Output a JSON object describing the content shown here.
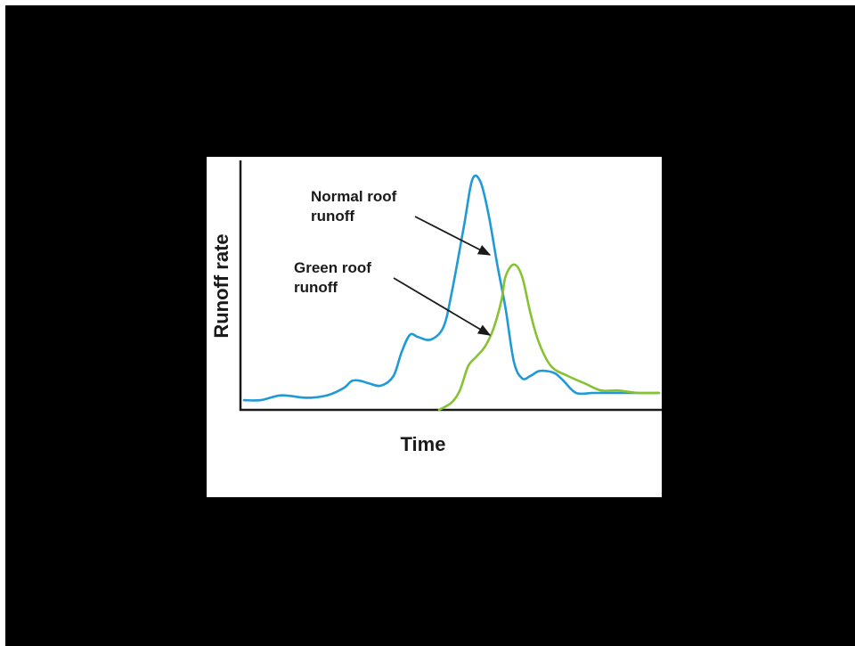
{
  "chart_data": {
    "type": "line",
    "xlabel": "Time",
    "ylabel": "Runoff rate",
    "grid": false,
    "xlim": [
      0,
      100
    ],
    "ylim": [
      0,
      100
    ],
    "series": [
      {
        "name": "Normal roof runoff",
        "color": "#1f9ad6",
        "x": [
          0,
          4,
          9,
          15,
          20,
          24,
          26,
          28,
          30,
          33,
          36,
          38,
          40,
          42,
          45,
          48,
          50,
          53,
          55,
          57,
          59,
          61,
          63,
          65,
          67,
          69,
          71,
          73,
          75,
          77,
          80,
          84,
          87,
          90,
          93,
          96,
          100
        ],
        "y": [
          4,
          4,
          6,
          5,
          6,
          9,
          12,
          12,
          11,
          10,
          14,
          24,
          31,
          30,
          29,
          34,
          48,
          76,
          95,
          94,
          80,
          60,
          42,
          20,
          13,
          14,
          16,
          16,
          15,
          12,
          7,
          7,
          7,
          7,
          7,
          7,
          7
        ]
      },
      {
        "name": "Green roof runoff",
        "color": "#86c232",
        "x": [
          47,
          50,
          52,
          54,
          56,
          58,
          60,
          62,
          63,
          65,
          67,
          69,
          71,
          74,
          78,
          82,
          86,
          90,
          95,
          100
        ],
        "y": [
          0,
          3,
          8,
          18,
          22,
          26,
          33,
          45,
          55,
          60,
          55,
          40,
          28,
          18,
          14,
          11,
          8,
          8,
          7,
          7
        ]
      }
    ],
    "annotations": [
      {
        "text": [
          "Normal roof",
          "runoff"
        ],
        "series": 0
      },
      {
        "text": [
          "Green roof",
          "runoff"
        ],
        "series": 1
      }
    ]
  }
}
